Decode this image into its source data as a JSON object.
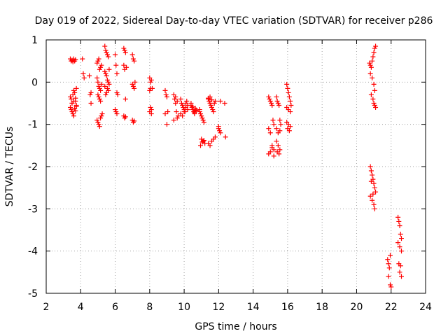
{
  "chart_data": {
    "type": "scatter",
    "title": "Day 019 of 2022, Sidereal Day-to-day VTEC variation (SDTVAR) for receiver p286",
    "xlabel": "GPS time / hours",
    "ylabel": "SDTVAR / TECUs",
    "xlim": [
      2,
      24
    ],
    "ylim": [
      -5,
      1
    ],
    "xticks": [
      2,
      4,
      6,
      8,
      10,
      12,
      14,
      16,
      18,
      20,
      22,
      24
    ],
    "xtick_labels": [
      "2",
      "4",
      "6",
      "8",
      "10",
      "12",
      "14",
      "16",
      "18",
      "20",
      "22",
      "24"
    ],
    "yticks": [
      -5,
      -4,
      -3,
      -2,
      -1,
      0,
      1
    ],
    "ytick_labels": [
      "-5",
      "-4",
      "-3",
      "-2",
      "-1",
      "0",
      "1"
    ],
    "grid": true,
    "marker": "+",
    "color": "#ff0000",
    "series": [
      {
        "name": "SDTVAR",
        "x": [
          3.4,
          3.45,
          3.5,
          3.55,
          3.6,
          3.65,
          3.7,
          3.4,
          3.45,
          3.5,
          3.55,
          3.6,
          3.65,
          3.7,
          3.75,
          3.4,
          3.45,
          3.5,
          3.55,
          3.6,
          3.65,
          3.7,
          3.75,
          3.5,
          3.6,
          3.7,
          3.75,
          4.1,
          4.15,
          4.2,
          4.5,
          4.55,
          4.6,
          4.6,
          4.95,
          5.0,
          5.05,
          5.1,
          5.15,
          5.2,
          4.95,
          5.0,
          5.05,
          5.1,
          5.15,
          5.2,
          5.0,
          5.05,
          5.1,
          5.15,
          4.95,
          5.0,
          5.05,
          5.1,
          5.15,
          5.2,
          5.25,
          5.4,
          5.45,
          5.5,
          5.55,
          5.6,
          5.65,
          5.4,
          5.45,
          5.5,
          5.55,
          5.6,
          5.65,
          5.4,
          5.45,
          5.5,
          5.55,
          5.6,
          6.0,
          6.05,
          6.1,
          6.1,
          6.15,
          6.0,
          6.05,
          6.1,
          6.5,
          6.55,
          6.6,
          6.65,
          6.5,
          6.55,
          6.6,
          6.5,
          6.55,
          6.6,
          7.0,
          7.05,
          7.1,
          7.15,
          7.0,
          7.05,
          7.1,
          7.0,
          7.05,
          7.1,
          8.0,
          8.05,
          8.1,
          8.15,
          8.0,
          8.05,
          8.1,
          8.0,
          8.05,
          8.1,
          8.9,
          8.95,
          9.0,
          9.05,
          8.9,
          9.0,
          9.4,
          9.45,
          9.5,
          9.55,
          9.6,
          9.65,
          9.4,
          9.5,
          9.6,
          9.8,
          9.85,
          9.9,
          9.95,
          10.0,
          10.05,
          10.1,
          10.15,
          10.2,
          9.8,
          9.9,
          10.0,
          10.1,
          10.2,
          10.4,
          10.45,
          10.5,
          10.55,
          10.6,
          10.65,
          10.7,
          10.4,
          10.5,
          10.6,
          10.7,
          10.9,
          10.95,
          11.0,
          11.05,
          11.1,
          11.15,
          10.9,
          11.0,
          11.1,
          11.2,
          10.95,
          11.05,
          11.15,
          11.4,
          11.45,
          11.5,
          11.55,
          11.6,
          11.65,
          11.7,
          11.75,
          11.8,
          11.4,
          11.5,
          11.6,
          11.7,
          11.8,
          11.4,
          11.5,
          11.6,
          12.0,
          12.05,
          12.1,
          12.0,
          12.1,
          12.35,
          12.4,
          14.9,
          14.95,
          15.0,
          15.05,
          15.1,
          15.15,
          15.2,
          14.9,
          15.0,
          15.1,
          15.2,
          14.9,
          15.0,
          15.1,
          15.2,
          15.35,
          15.4,
          15.45,
          15.5,
          15.55,
          15.6,
          15.35,
          15.45,
          15.55,
          15.35,
          15.45,
          15.55,
          15.4,
          15.5,
          15.95,
          16.0,
          16.05,
          16.1,
          16.15,
          16.2,
          15.95,
          16.05,
          16.15,
          15.95,
          16.05,
          16.15,
          16.0,
          16.1,
          20.75,
          20.8,
          20.85,
          20.9,
          20.95,
          21.0,
          21.05,
          21.1,
          20.8,
          20.9,
          21.0,
          21.05,
          20.85,
          20.95,
          21.0,
          21.05,
          21.1,
          20.8,
          20.85,
          20.9,
          20.95,
          21.0,
          21.05,
          21.1,
          20.8,
          20.9,
          21.0,
          20.85,
          20.95,
          21.05,
          21.8,
          21.85,
          21.9,
          21.95,
          22.0,
          21.85,
          21.95,
          22.4,
          22.45,
          22.5,
          22.55,
          22.6,
          22.4,
          22.5,
          22.6,
          22.45,
          22.55,
          22.5,
          22.6
        ],
        "y": [
          0.55,
          0.5,
          0.52,
          0.48,
          0.55,
          0.5,
          0.53,
          -0.35,
          -0.4,
          -0.5,
          -0.3,
          -0.2,
          -0.25,
          -0.45,
          -0.55,
          -0.6,
          -0.65,
          -0.7,
          -0.75,
          -0.8,
          -0.62,
          -0.68,
          -0.58,
          -0.5,
          -0.45,
          -0.38,
          -0.15,
          0.55,
          0.2,
          0.1,
          0.15,
          -0.3,
          -0.5,
          -0.25,
          0.45,
          0.5,
          0.55,
          0.3,
          0.35,
          0.4,
          0.1,
          0.0,
          -0.1,
          -0.15,
          -0.2,
          -0.05,
          -0.3,
          -0.35,
          -0.4,
          -0.45,
          -0.9,
          -0.95,
          -1.0,
          -1.05,
          -0.85,
          -0.8,
          -0.75,
          0.85,
          0.75,
          0.7,
          0.65,
          0.6,
          0.3,
          0.25,
          0.2,
          0.15,
          0.05,
          0.0,
          -0.05,
          -0.1,
          -0.3,
          -0.25,
          -0.15,
          -0.2,
          0.65,
          0.4,
          0.2,
          -0.25,
          -0.3,
          -0.65,
          -0.7,
          -0.75,
          0.8,
          0.75,
          0.7,
          0.35,
          0.4,
          0.3,
          -0.4,
          -0.8,
          -0.85,
          -0.82,
          0.65,
          0.55,
          0.5,
          0.0,
          -0.05,
          -0.1,
          -0.15,
          -0.9,
          -0.95,
          -0.92,
          0.1,
          0.0,
          0.05,
          -0.15,
          -0.2,
          -0.15,
          -0.65,
          -0.7,
          -0.6,
          -0.75,
          -0.2,
          -0.3,
          -0.35,
          -0.7,
          -0.75,
          -1.0,
          -0.3,
          -0.4,
          -0.5,
          -0.7,
          -0.85,
          -0.8,
          -0.9,
          -0.35,
          -0.45,
          -0.4,
          -0.5,
          -0.55,
          -0.6,
          -0.65,
          -0.7,
          -0.5,
          -0.45,
          -0.55,
          -0.75,
          -0.8,
          -0.7,
          -0.6,
          -0.65,
          -0.55,
          -0.6,
          -0.65,
          -0.7,
          -0.75,
          -0.62,
          -0.68,
          -0.5,
          -0.58,
          -0.72,
          -0.66,
          -0.7,
          -0.75,
          -0.8,
          -0.85,
          -0.9,
          -0.95,
          -0.65,
          -1.35,
          -1.4,
          -1.45,
          -1.5,
          -1.42,
          -1.38,
          -0.4,
          -0.45,
          -0.5,
          -0.55,
          -0.6,
          -0.65,
          -0.7,
          -0.5,
          -0.45,
          -1.45,
          -1.5,
          -1.4,
          -1.35,
          -1.3,
          -0.38,
          -0.35,
          -0.42,
          -1.1,
          -1.15,
          -1.2,
          -1.05,
          -0.45,
          -0.5,
          -1.3,
          -0.35,
          -0.4,
          -0.45,
          -0.5,
          -0.55,
          -0.9,
          -1.0,
          -1.1,
          -1.2,
          -1.5,
          -1.6,
          -1.7,
          -1.65,
          -1.55,
          -1.75,
          -0.35,
          -0.45,
          -0.5,
          -0.55,
          -0.9,
          -1.0,
          -1.1,
          -1.2,
          -1.15,
          -1.4,
          -1.5,
          -1.6,
          -1.65,
          -1.7,
          -0.05,
          -0.15,
          -0.25,
          -0.35,
          -0.45,
          -0.55,
          -0.6,
          -0.65,
          -0.7,
          -0.95,
          -1.0,
          -1.05,
          -1.1,
          -1.15,
          0.45,
          0.4,
          0.35,
          0.5,
          0.6,
          0.7,
          0.8,
          0.85,
          0.2,
          0.1,
          -0.05,
          -0.2,
          -0.3,
          -0.4,
          -0.5,
          -0.55,
          -0.6,
          -2.0,
          -2.1,
          -2.2,
          -2.3,
          -2.4,
          -2.5,
          -2.6,
          -2.7,
          -2.8,
          -2.9,
          -2.35,
          -2.65,
          -3.0,
          -4.2,
          -4.3,
          -4.4,
          -4.8,
          -4.85,
          -4.6,
          -4.1,
          -3.2,
          -3.3,
          -3.4,
          -3.6,
          -3.7,
          -3.8,
          -3.9,
          -4.0,
          -4.3,
          -4.35,
          -4.5,
          -4.6
        ]
      }
    ]
  }
}
